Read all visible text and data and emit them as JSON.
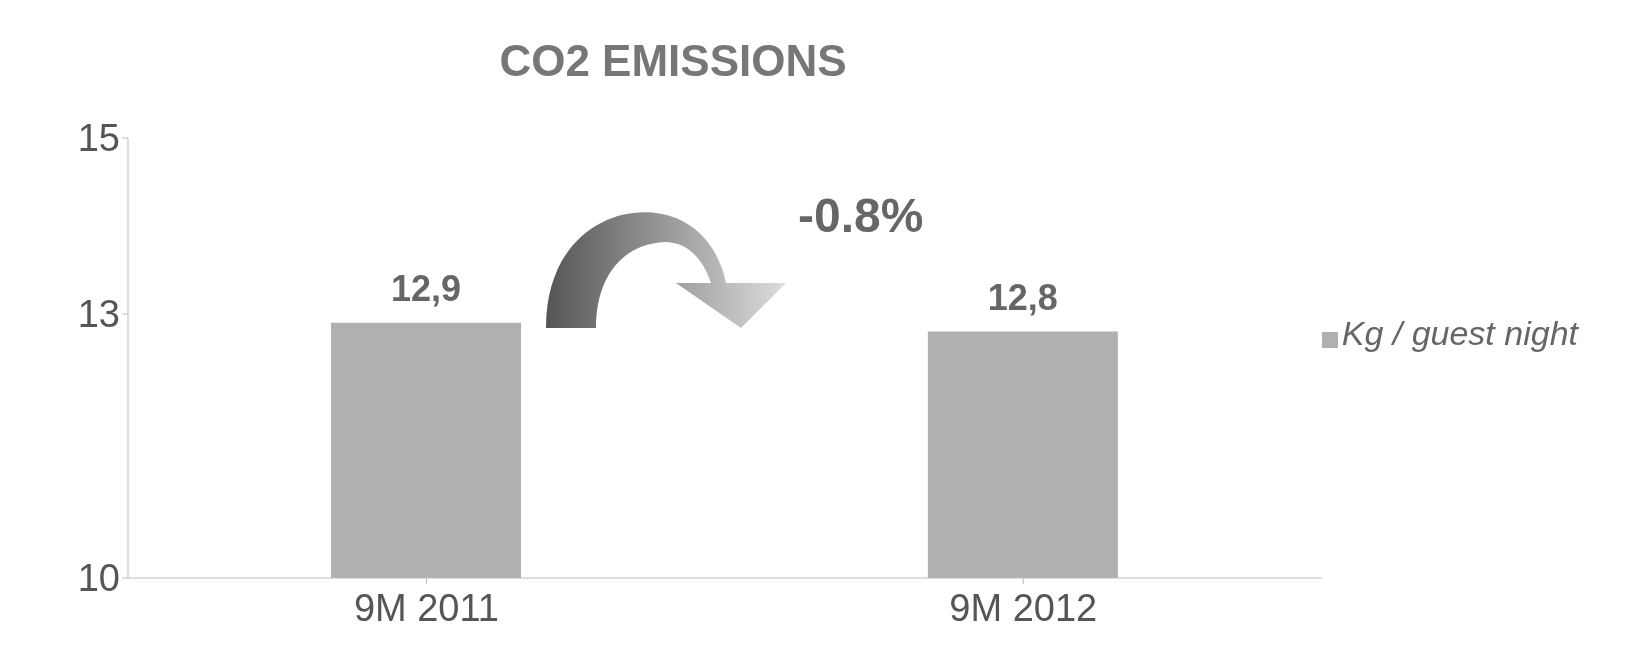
{
  "chart_data": {
    "type": "bar",
    "title": "CO2 EMISSIONS",
    "categories": [
      "9M 2011",
      "9M 2012"
    ],
    "series": [
      {
        "name": "Kg / guest night",
        "color": "#b0b0b0",
        "values": [
          12.9,
          12.8
        ],
        "value_labels": [
          "12,9",
          "12,8"
        ]
      }
    ],
    "ylim": [
      10,
      15
    ],
    "yticks": [
      10,
      13,
      15
    ],
    "grid": false,
    "legend": "right",
    "annotations": [
      "-0.8%"
    ]
  }
}
